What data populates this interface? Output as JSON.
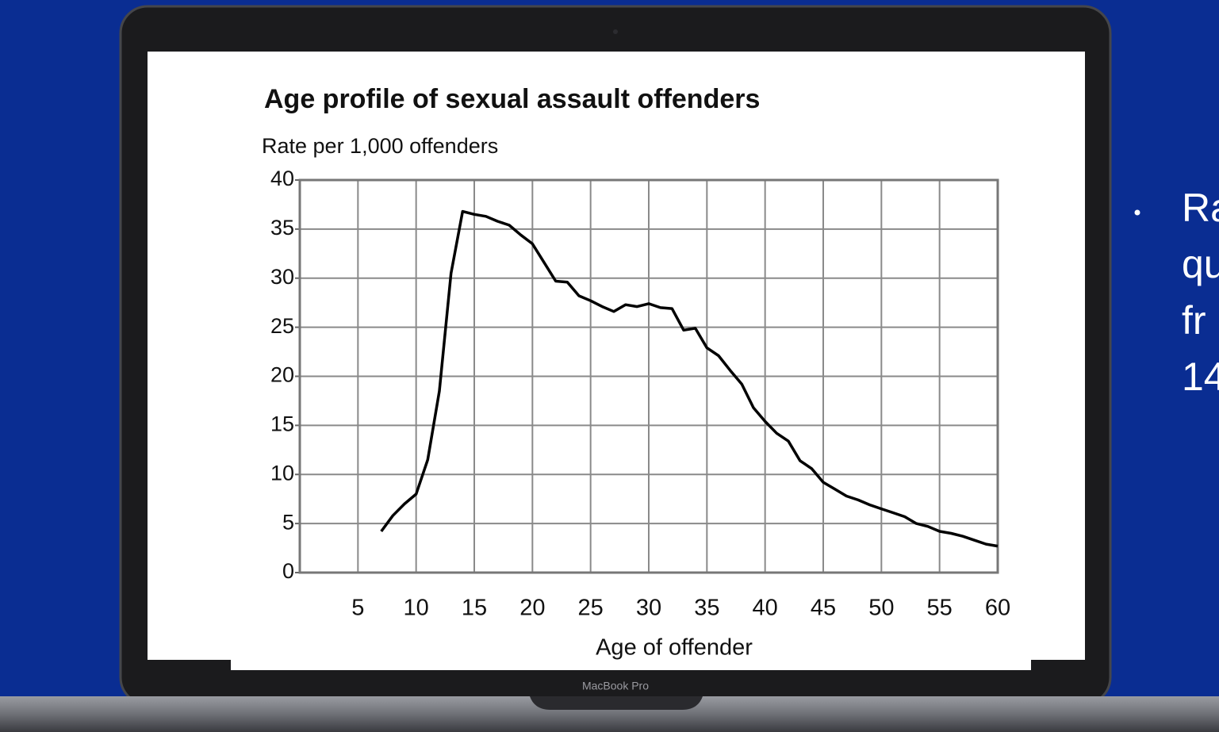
{
  "chart_data": {
    "type": "line",
    "title": "Age profile of sexual assault offenders",
    "y_label": "Rate per 1,000 offenders",
    "x_label": "Age of offender",
    "x": [
      7,
      8,
      9,
      10,
      11,
      12,
      13,
      14,
      15,
      16,
      17,
      18,
      19,
      20,
      21,
      22,
      23,
      24,
      25,
      26,
      27,
      28,
      29,
      30,
      31,
      32,
      33,
      34,
      35,
      36,
      37,
      38,
      39,
      40,
      41,
      42,
      43,
      44,
      45,
      46,
      47,
      48,
      49,
      50,
      51,
      52,
      53,
      54,
      55,
      56,
      57,
      58,
      59,
      60
    ],
    "values": [
      4.2,
      5.8,
      7,
      8,
      11.5,
      18.5,
      30.5,
      36.8,
      36.5,
      36.3,
      35.8,
      35.4,
      34.4,
      33.5,
      31.6,
      29.7,
      29.6,
      28.2,
      27.7,
      27.1,
      26.6,
      27.3,
      27.1,
      27.4,
      27,
      26.9,
      24.7,
      24.9,
      22.9,
      22.1,
      20.6,
      19.2,
      16.8,
      15.4,
      14.2,
      13.4,
      11.4,
      10.6,
      9.2,
      8.5,
      7.8,
      7.4,
      6.9,
      6.5,
      6.1,
      5.7,
      5,
      4.7,
      4.2,
      4,
      3.7,
      3.3,
      2.9,
      2.7
    ],
    "color": "#000000",
    "xlim": [
      0,
      60
    ],
    "xticks": [
      5,
      10,
      15,
      20,
      25,
      30,
      35,
      40,
      45,
      50,
      55,
      60
    ],
    "ylim": [
      0,
      40
    ],
    "yticks": [
      0,
      5,
      10,
      15,
      20,
      25,
      30,
      35,
      40
    ],
    "grid": true
  },
  "device_label": "MacBook Pro",
  "bullet_lines": [
    "Ra",
    "qu",
    "fr",
    "14"
  ]
}
